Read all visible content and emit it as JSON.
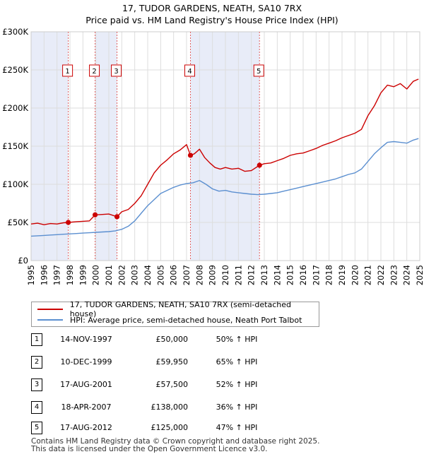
{
  "header": {
    "line1": "17, TUDOR GARDENS, NEATH, SA10 7RX",
    "line2": "Price paid vs. HM Land Registry's House Price Index (HPI)"
  },
  "legend": {
    "property_label": "17, TUDOR GARDENS, NEATH, SA10 7RX (semi-detached house)",
    "hpi_label": "HPI: Average price, semi-detached house, Neath Port Talbot"
  },
  "colors": {
    "property": "#cc0000",
    "hpi": "#5b8fd0",
    "band": "#e8ecf8",
    "grid": "#dddddd",
    "marker_line": "#e06060"
  },
  "sales": [
    {
      "num": "1",
      "date": "14-NOV-1997",
      "price": "£50,000",
      "hpi": "50% ↑ HPI"
    },
    {
      "num": "2",
      "date": "10-DEC-1999",
      "price": "£59,950",
      "hpi": "65% ↑ HPI"
    },
    {
      "num": "3",
      "date": "17-AUG-2001",
      "price": "£57,500",
      "hpi": "52% ↑ HPI"
    },
    {
      "num": "4",
      "date": "18-APR-2007",
      "price": "£138,000",
      "hpi": "36% ↑ HPI"
    },
    {
      "num": "5",
      "date": "17-AUG-2012",
      "price": "£125,000",
      "hpi": "47% ↑ HPI"
    }
  ],
  "footer": {
    "line1": "Contains HM Land Registry data © Crown copyright and database right 2025.",
    "line2": "This data is licensed under the Open Government Licence v3.0."
  },
  "chart_data": {
    "type": "line",
    "xlim": [
      1995,
      2025
    ],
    "ylim": [
      0,
      300000
    ],
    "y_ticks": [
      {
        "value": 0,
        "label": "£0"
      },
      {
        "value": 50000,
        "label": "£50K"
      },
      {
        "value": 100000,
        "label": "£100K"
      },
      {
        "value": 150000,
        "label": "£150K"
      },
      {
        "value": 200000,
        "label": "£200K"
      },
      {
        "value": 250000,
        "label": "£250K"
      },
      {
        "value": 300000,
        "label": "£300K"
      }
    ],
    "x_ticks": [
      "1995",
      "1996",
      "1997",
      "1998",
      "1999",
      "2000",
      "2001",
      "2002",
      "2003",
      "2004",
      "2005",
      "2006",
      "2007",
      "2008",
      "2009",
      "2010",
      "2011",
      "2012",
      "2013",
      "2014",
      "2015",
      "2016",
      "2017",
      "2018",
      "2019",
      "2020",
      "2021",
      "2022",
      "2023",
      "2024",
      "2025"
    ],
    "grid": true,
    "legend_position": "below",
    "sale_markers": [
      {
        "label": "1",
        "x": 1997.87,
        "y": 50000
      },
      {
        "label": "2",
        "x": 1999.94,
        "y": 59950
      },
      {
        "label": "3",
        "x": 2001.63,
        "y": 57500
      },
      {
        "label": "4",
        "x": 2007.3,
        "y": 138000
      },
      {
        "label": "5",
        "x": 2012.63,
        "y": 125000
      }
    ],
    "shaded_bands": [
      [
        1995,
        1997.87
      ],
      [
        1999.94,
        2001.63
      ],
      [
        2007.3,
        2012.63
      ]
    ],
    "series": [
      {
        "name": "17, TUDOR GARDENS, NEATH, SA10 7RX (semi-detached house)",
        "x": [
          1995.0,
          1995.5,
          1996.0,
          1996.5,
          1997.0,
          1997.5,
          1997.87,
          1998.5,
          1999.0,
          1999.5,
          1999.94,
          2000.5,
          2001.0,
          2001.63,
          2002.0,
          2002.5,
          2003.0,
          2003.5,
          2004.0,
          2004.5,
          2005.0,
          2005.5,
          2006.0,
          2006.5,
          2007.0,
          2007.3,
          2007.6,
          2008.0,
          2008.4,
          2008.8,
          2009.2,
          2009.6,
          2010.0,
          2010.5,
          2011.0,
          2011.5,
          2012.0,
          2012.63,
          2013.0,
          2013.5,
          2014.0,
          2014.5,
          2015.0,
          2015.5,
          2016.0,
          2016.5,
          2017.0,
          2017.5,
          2018.0,
          2018.5,
          2019.0,
          2019.5,
          2020.0,
          2020.5,
          2021.0,
          2021.5,
          2022.0,
          2022.5,
          2023.0,
          2023.5,
          2024.0,
          2024.5,
          2024.9
        ],
        "y": [
          48000,
          49000,
          47000,
          48500,
          48000,
          49500,
          50000,
          51000,
          51500,
          52000,
          59950,
          60500,
          61000,
          57500,
          64000,
          67000,
          75000,
          85000,
          100000,
          115000,
          125000,
          132000,
          140000,
          145000,
          152000,
          138000,
          140000,
          146000,
          135000,
          128000,
          122000,
          120000,
          122000,
          120000,
          121000,
          117000,
          118000,
          125000,
          127000,
          128000,
          131000,
          134000,
          138000,
          140000,
          141000,
          144000,
          147000,
          151000,
          154000,
          157000,
          161000,
          164000,
          167000,
          172000,
          190000,
          203000,
          220000,
          230000,
          228000,
          232000,
          225000,
          235000,
          238000
        ]
      },
      {
        "name": "HPI: Average price, semi-detached house, Neath Port Talbot",
        "x": [
          1995.0,
          1995.5,
          1996.0,
          1996.5,
          1997.0,
          1997.5,
          1998.0,
          1998.5,
          1999.0,
          1999.5,
          2000.0,
          2000.5,
          2001.0,
          2001.5,
          2002.0,
          2002.5,
          2003.0,
          2003.5,
          2004.0,
          2004.5,
          2005.0,
          2005.5,
          2006.0,
          2006.5,
          2007.0,
          2007.5,
          2008.0,
          2008.5,
          2009.0,
          2009.5,
          2010.0,
          2010.5,
          2011.0,
          2011.5,
          2012.0,
          2012.5,
          2013.0,
          2013.5,
          2014.0,
          2014.5,
          2015.0,
          2015.5,
          2016.0,
          2016.5,
          2017.0,
          2017.5,
          2018.0,
          2018.5,
          2019.0,
          2019.5,
          2020.0,
          2020.5,
          2021.0,
          2021.5,
          2022.0,
          2022.5,
          2023.0,
          2023.5,
          2024.0,
          2024.5,
          2024.9
        ],
        "y": [
          32000,
          32500,
          33000,
          33500,
          34000,
          34500,
          35000,
          35500,
          36000,
          36500,
          37000,
          37500,
          38000,
          39000,
          41000,
          45000,
          52000,
          62000,
          72000,
          80000,
          88000,
          92000,
          96000,
          99000,
          101000,
          102000,
          105000,
          100000,
          94000,
          91000,
          92000,
          90000,
          89000,
          88000,
          87000,
          86500,
          87000,
          88000,
          89000,
          91000,
          93000,
          95000,
          97000,
          99000,
          101000,
          103000,
          105000,
          107000,
          110000,
          113000,
          115000,
          120000,
          130000,
          140000,
          148000,
          155000,
          156000,
          155000,
          154000,
          158000,
          160000
        ]
      }
    ]
  }
}
